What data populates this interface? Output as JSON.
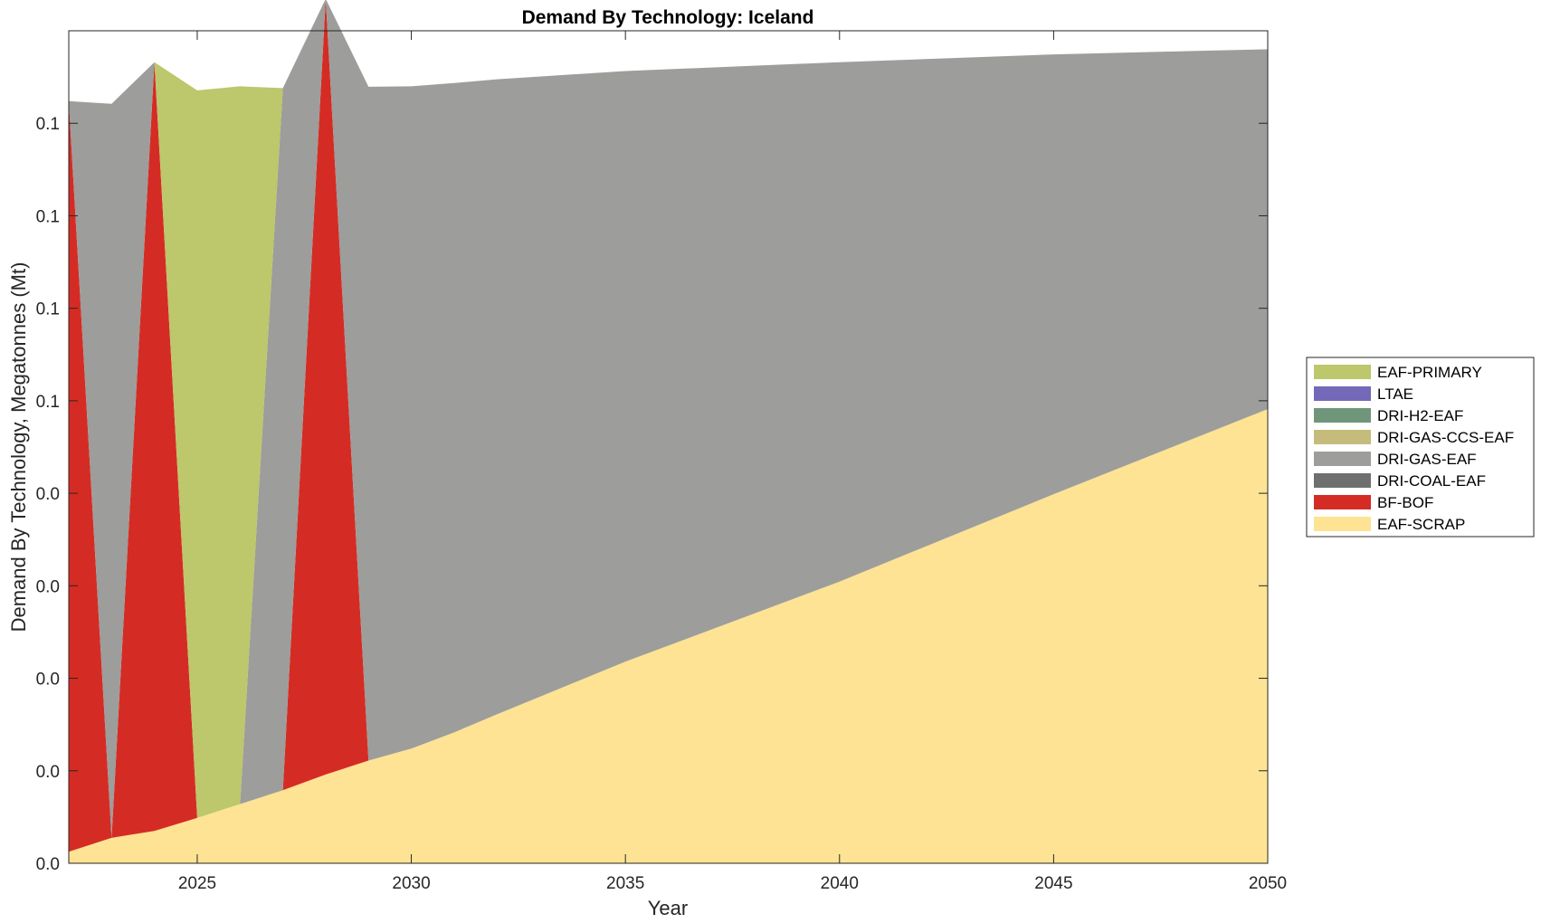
{
  "chart_data": {
    "type": "area",
    "stacked": true,
    "title": "Demand By Technology: Iceland",
    "xlabel": "Year",
    "ylabel": "Demand By Technology, Megatonnes (Mt)",
    "xlim": [
      2022,
      2050
    ],
    "ylim": [
      0.0,
      0.18
    ],
    "x_ticks": [
      2025,
      2030,
      2035,
      2040,
      2045,
      2050
    ],
    "y_ticks": [
      {
        "value": 0.0,
        "label": "0.0"
      },
      {
        "value": 0.02,
        "label": "0.0"
      },
      {
        "value": 0.04,
        "label": "0.0"
      },
      {
        "value": 0.06,
        "label": "0.0"
      },
      {
        "value": 0.08,
        "label": "0.0"
      },
      {
        "value": 0.1,
        "label": "0.1"
      },
      {
        "value": 0.12,
        "label": "0.1"
      },
      {
        "value": 0.14,
        "label": "0.1"
      },
      {
        "value": 0.16,
        "label": "0.1"
      }
    ],
    "grid": false,
    "legend_position": "right",
    "x": [
      2022,
      2023,
      2024,
      2025,
      2026,
      2027,
      2028,
      2029,
      2030,
      2031,
      2032,
      2035,
      2040,
      2045,
      2050
    ],
    "series": [
      {
        "name": "EAF-SCRAP",
        "color": "#fde393",
        "values": [
          0.0025,
          0.0055,
          0.007,
          0.0098,
          0.0128,
          0.0158,
          0.0192,
          0.0222,
          0.0248,
          0.0283,
          0.0322,
          0.0436,
          0.0609,
          0.0798,
          0.0982
        ]
      },
      {
        "name": "BF-BOF",
        "color": "#d42c24",
        "values": [
          0.1623,
          0,
          0.1662,
          0,
          0,
          0,
          0.1677,
          0,
          0,
          0,
          0,
          0,
          0,
          0,
          0
        ]
      },
      {
        "name": "DRI-COAL-EAF",
        "color": "#6f6f6f",
        "values": [
          0,
          0,
          0,
          0,
          0,
          0,
          0,
          0,
          0,
          0,
          0,
          0,
          0,
          0,
          0
        ]
      },
      {
        "name": "DRI-GAS-EAF",
        "color": "#9d9d9b",
        "values": [
          0,
          0.1587,
          0,
          0,
          0,
          0.1518,
          0,
          0.1457,
          0.1432,
          0.1404,
          0.1373,
          0.1277,
          0.1123,
          0.0951,
          0.0778
        ]
      },
      {
        "name": "DRI-GAS-CCS-EAF",
        "color": "#c5bc7c",
        "values": [
          0,
          0,
          0,
          0,
          0,
          0,
          0,
          0,
          0,
          0,
          0,
          0,
          0,
          0,
          0
        ]
      },
      {
        "name": "DRI-H2-EAF",
        "color": "#6f967a",
        "values": [
          0,
          0,
          0,
          0,
          0,
          0,
          0,
          0,
          0,
          0,
          0,
          0,
          0,
          0,
          0
        ]
      },
      {
        "name": "LTAE",
        "color": "#7468b8",
        "values": [
          0,
          0,
          0,
          0,
          0,
          0,
          0,
          0,
          0,
          0,
          0,
          0,
          0,
          0,
          0
        ]
      },
      {
        "name": "EAF-PRIMARY",
        "color": "#bdc76b",
        "values": [
          0,
          0,
          0,
          0.1573,
          0.1552,
          0,
          0,
          0.0,
          0,
          0,
          0,
          0,
          0,
          0,
          0
        ]
      }
    ],
    "legend_order": [
      "EAF-PRIMARY",
      "LTAE",
      "DRI-H2-EAF",
      "DRI-GAS-CCS-EAF",
      "DRI-GAS-EAF",
      "DRI-COAL-EAF",
      "BF-BOF",
      "EAF-SCRAP"
    ]
  }
}
